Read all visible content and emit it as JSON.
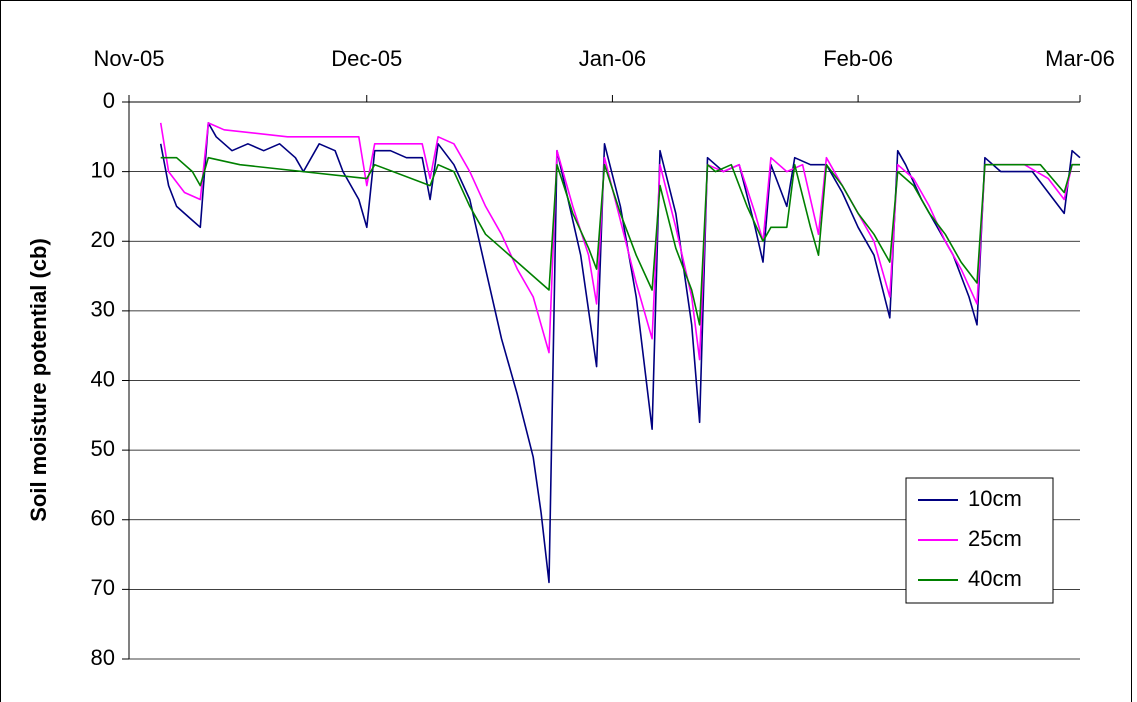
{
  "chart_data": {
    "type": "line",
    "y_label": "Soil moisture potential (cb)",
    "xlim": [
      0,
      120
    ],
    "xticks": [
      {
        "value": 0,
        "label": "Nov-05"
      },
      {
        "value": 30,
        "label": "Dec-05"
      },
      {
        "value": 61,
        "label": "Jan-06"
      },
      {
        "value": 92,
        "label": "Feb-06"
      },
      {
        "value": 120,
        "label": "Mar-06"
      }
    ],
    "x_axis_position": "top",
    "ylim": [
      0,
      80
    ],
    "y_inverted": true,
    "yticks": [
      0,
      10,
      20,
      30,
      40,
      50,
      60,
      70,
      80
    ],
    "grid": true,
    "legend": "lower right",
    "series": [
      {
        "name": "10cm",
        "color": "#000080",
        "x": [
          4,
          5,
          6,
          7,
          8,
          9,
          10,
          11,
          13,
          15,
          17,
          19,
          21,
          22,
          24,
          26,
          27,
          29,
          30,
          31,
          33,
          35,
          37,
          38,
          39,
          41,
          43,
          45,
          47,
          49,
          51,
          52,
          53,
          54,
          55,
          57,
          59,
          60,
          62,
          64,
          66,
          67,
          69,
          71,
          72,
          73,
          75,
          77,
          79,
          80,
          81,
          83,
          84,
          86,
          88,
          90,
          92,
          94,
          96,
          97,
          98,
          100,
          102,
          104,
          106,
          107,
          108,
          110,
          112,
          114,
          116,
          118,
          119,
          120
        ],
        "values": [
          6,
          12,
          15,
          16,
          17,
          18,
          3,
          5,
          7,
          6,
          7,
          6,
          8,
          10,
          6,
          7,
          10,
          14,
          18,
          7,
          7,
          8,
          8,
          14,
          6,
          9,
          14,
          24,
          34,
          42,
          51,
          59,
          69,
          7,
          12,
          22,
          38,
          6,
          15,
          28,
          47,
          7,
          16,
          32,
          46,
          8,
          10,
          9,
          18,
          23,
          9,
          15,
          8,
          9,
          9,
          13,
          18,
          22,
          31,
          7,
          9,
          14,
          18,
          22,
          28,
          32,
          8,
          10,
          10,
          10,
          13,
          16,
          7,
          8
        ]
      },
      {
        "name": "25cm",
        "color": "#ff00ff",
        "x": [
          4,
          5,
          7,
          9,
          10,
          12,
          20,
          29,
          30,
          31,
          37,
          38,
          39,
          41,
          43,
          45,
          47,
          49,
          51,
          52,
          53,
          54,
          56,
          58,
          59,
          60,
          62,
          64,
          66,
          67,
          69,
          71,
          72,
          73,
          75,
          77,
          79,
          80,
          81,
          83,
          85,
          87,
          88,
          90,
          92,
          94,
          96,
          97,
          99,
          101,
          103,
          105,
          107,
          108,
          113,
          116,
          118,
          119,
          120
        ],
        "values": [
          3,
          10,
          13,
          14,
          3,
          4,
          5,
          5,
          12,
          6,
          6,
          11,
          5,
          6,
          10,
          15,
          19,
          24,
          28,
          32,
          36,
          7,
          15,
          22,
          29,
          8,
          17,
          26,
          34,
          9,
          18,
          28,
          37,
          9,
          10,
          9,
          16,
          20,
          8,
          10,
          9,
          19,
          8,
          12,
          16,
          20,
          28,
          9,
          11,
          15,
          20,
          24,
          29,
          9,
          9,
          11,
          14,
          9,
          9
        ]
      },
      {
        "name": "40cm",
        "color": "#008000",
        "x": [
          4,
          6,
          8,
          9,
          10,
          14,
          30,
          31,
          38,
          39,
          41,
          43,
          45,
          47,
          49,
          51,
          53,
          54,
          56,
          58,
          59,
          60,
          62,
          64,
          66,
          67,
          69,
          71,
          72,
          73,
          74,
          76,
          78,
          80,
          81,
          83,
          84,
          86,
          87,
          88,
          90,
          92,
          94,
          96,
          97,
          99,
          101,
          103,
          105,
          107,
          108,
          115,
          118,
          119,
          120
        ],
        "values": [
          8,
          8,
          10,
          12,
          8,
          9,
          11,
          9,
          12,
          9,
          10,
          15,
          19,
          21,
          23,
          25,
          27,
          9,
          16,
          21,
          24,
          9,
          16,
          22,
          27,
          12,
          21,
          27,
          32,
          9,
          10,
          9,
          15,
          20,
          18,
          18,
          9,
          18,
          22,
          9,
          12,
          16,
          19,
          23,
          10,
          12,
          16,
          19,
          23,
          26,
          9,
          9,
          13,
          9,
          9
        ]
      }
    ]
  }
}
